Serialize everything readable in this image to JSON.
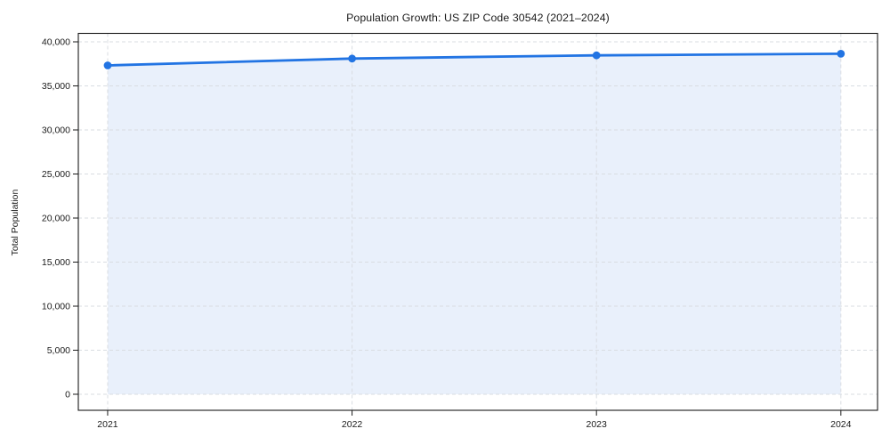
{
  "chart_data": {
    "type": "area",
    "title": "Population Growth: US ZIP Code 30542 (2021–2024)",
    "ylabel": "Total Population",
    "xlabel": "",
    "categories": [
      "2021",
      "2022",
      "2023",
      "2024"
    ],
    "x": [
      2021,
      2022,
      2023,
      2024
    ],
    "series": [
      {
        "name": "Total Population",
        "values": [
          37320,
          38100,
          38460,
          38650
        ]
      }
    ],
    "baseline": 0,
    "y_ticks": [
      0,
      5000,
      10000,
      15000,
      20000,
      25000,
      30000,
      35000,
      40000
    ],
    "y_tick_labels": [
      "0",
      "5,000",
      "10,000",
      "15,000",
      "20,000",
      "25,000",
      "30,000",
      "35,000",
      "40,000"
    ],
    "xlim": [
      2020.88,
      2024.15
    ],
    "ylim": [
      -1820,
      40960
    ],
    "grid": {
      "on": true,
      "style": "dashed",
      "color": "#d9dde2"
    },
    "legend_position": "none",
    "colors": {
      "line": "#2274e3",
      "marker": "#2274e3",
      "fill": "#e9f0fb",
      "axis": "#1a1a1a",
      "tick_text": "#1a1a1a",
      "background": "#ffffff"
    }
  }
}
